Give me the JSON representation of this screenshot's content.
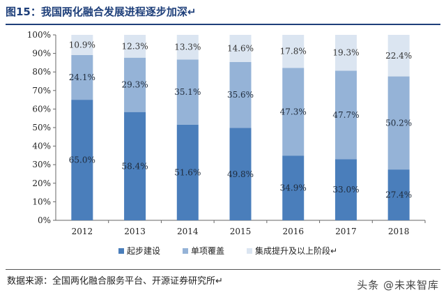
{
  "header": {
    "title": "图15：我国两化融合发展进程逐步加深↵"
  },
  "footer": {
    "source": "数据来源：全国两化融合服务平台、开源证券研究所↵",
    "watermark": "头条 @未来智库"
  },
  "colors": {
    "series1": "#4a7ebb",
    "series2": "#95b3d7",
    "series3": "#dbe5f1",
    "title": "#1e3f7a"
  },
  "chart_data": {
    "type": "bar",
    "stacked": true,
    "percent": true,
    "categories": [
      "2012",
      "2013",
      "2014",
      "2015",
      "2016",
      "2017",
      "2018"
    ],
    "series": [
      {
        "name": "起步建设",
        "values": [
          65.0,
          58.4,
          51.6,
          49.8,
          34.9,
          33.0,
          27.4
        ],
        "labels": [
          "65.0%",
          "58.4%",
          "51.6%",
          "49.8%",
          "34.9%",
          "33.0%",
          "27.4%"
        ]
      },
      {
        "name": "单项覆盖",
        "values": [
          24.1,
          29.3,
          35.1,
          35.6,
          47.3,
          47.7,
          50.2
        ],
        "labels": [
          "24.1%",
          "29.3%",
          "35.1%",
          "35.6%",
          "47.3%",
          "47.7%",
          "50.2%"
        ]
      },
      {
        "name": "集成提升及以上阶段↵",
        "values": [
          10.9,
          12.3,
          13.3,
          14.6,
          17.8,
          19.3,
          22.4
        ],
        "labels": [
          "10.9%",
          "12.3%",
          "13.3%",
          "14.6%",
          "17.8%",
          "19.3%",
          "22.4%"
        ]
      }
    ],
    "yticks": [
      "0%",
      "10%",
      "20%",
      "30%",
      "40%",
      "50%",
      "60%",
      "70%",
      "80%",
      "90%",
      "100%"
    ],
    "ylim": [
      0,
      100
    ],
    "grid": false,
    "legend": "bottom"
  }
}
